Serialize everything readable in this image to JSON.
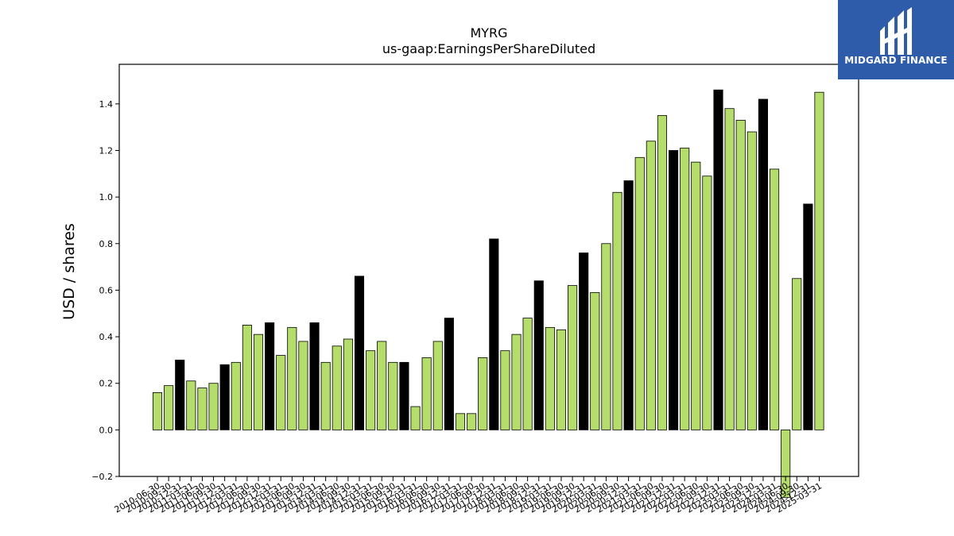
{
  "brand": {
    "name": "MIDGARD FINANCE",
    "background": "#2f5bab",
    "text_color": "#ffffff"
  },
  "colors": {
    "light_bar": "#b5dd6b",
    "dark_bar": "#000000",
    "bar_edge": "#000000",
    "axis": "#000000"
  },
  "chart_data": {
    "type": "bar",
    "title": "MYRG",
    "subtitle": "us-gaap:EarningsPerShareDiluted",
    "xlabel": "",
    "ylabel": "USD / shares",
    "ylim": [
      -0.2,
      1.57
    ],
    "yticks": [
      -0.2,
      0.0,
      0.2,
      0.4,
      0.6,
      0.8,
      1.0,
      1.2,
      1.4
    ],
    "ytick_labels": [
      "−0.2",
      "0.0",
      "0.2",
      "0.4",
      "0.6",
      "0.8",
      "1.0",
      "1.2",
      "1.4"
    ],
    "grid": false,
    "legend": "none",
    "categories": [
      "2010-06-30",
      "2010-09-30",
      "2010-12-31",
      "2011-03-31",
      "2011-06-30",
      "2011-09-30",
      "2011-12-31",
      "2012-03-31",
      "2012-06-30",
      "2012-09-30",
      "2012-12-31",
      "2013-03-31",
      "2013-06-30",
      "2013-09-30",
      "2013-12-31",
      "2014-03-31",
      "2014-06-30",
      "2014-09-30",
      "2014-12-31",
      "2015-03-31",
      "2015-06-30",
      "2015-09-30",
      "2015-12-31",
      "2016-03-31",
      "2016-06-30",
      "2016-09-30",
      "2016-12-31",
      "2017-03-31",
      "2017-06-30",
      "2017-09-30",
      "2017-12-31",
      "2018-03-31",
      "2018-06-30",
      "2018-09-30",
      "2018-12-31",
      "2019-03-31",
      "2019-06-30",
      "2019-09-30",
      "2019-12-31",
      "2020-03-31",
      "2020-06-30",
      "2020-09-30",
      "2020-12-31",
      "2021-03-31",
      "2021-06-30",
      "2021-09-30",
      "2021-12-31",
      "2022-03-31",
      "2022-06-30",
      "2022-09-30",
      "2022-12-31",
      "2023-03-31",
      "2023-06-30",
      "2023-09-30",
      "2023-12-31",
      "2024-03-31",
      "2024-06-30",
      "2024-09-30",
      "2024-12-31",
      "2025-03-31"
    ],
    "values": [
      0.16,
      0.19,
      0.3,
      0.21,
      0.18,
      0.2,
      0.28,
      0.29,
      0.45,
      0.41,
      0.46,
      0.32,
      0.44,
      0.38,
      0.46,
      0.29,
      0.36,
      0.39,
      0.66,
      0.34,
      0.38,
      0.29,
      0.29,
      0.1,
      0.31,
      0.38,
      0.48,
      0.07,
      0.07,
      0.31,
      0.82,
      0.34,
      0.41,
      0.48,
      0.64,
      0.44,
      0.43,
      0.62,
      0.76,
      0.59,
      0.8,
      1.02,
      1.07,
      1.17,
      1.24,
      1.35,
      1.2,
      1.21,
      1.15,
      1.09,
      1.46,
      1.38,
      1.33,
      1.28,
      1.42,
      1.12,
      -0.29,
      0.65,
      0.97,
      1.45
    ],
    "quarter_end_full_year": [
      false,
      false,
      true,
      false,
      false,
      false,
      true,
      false,
      false,
      false,
      true,
      false,
      false,
      false,
      true,
      false,
      false,
      false,
      true,
      false,
      false,
      false,
      true,
      false,
      false,
      false,
      true,
      false,
      false,
      false,
      true,
      false,
      false,
      false,
      true,
      false,
      false,
      false,
      true,
      false,
      false,
      false,
      true,
      false,
      false,
      false,
      true,
      false,
      false,
      false,
      true,
      false,
      false,
      false,
      true,
      false,
      false,
      false,
      true,
      false
    ]
  }
}
